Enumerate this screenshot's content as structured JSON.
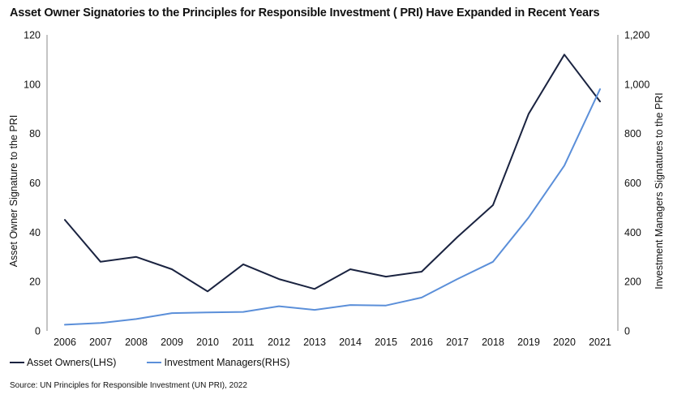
{
  "chart_data": {
    "type": "line",
    "title": "Asset Owner Signatories to the Principles for Responsible Investment ( PRI) Have Expanded in Recent Years",
    "x": [
      "2006",
      "2007",
      "2008",
      "2009",
      "2010",
      "2011",
      "2012",
      "2013",
      "2014",
      "2015",
      "2016",
      "2017",
      "2018",
      "2019",
      "2020",
      "2021"
    ],
    "series": [
      {
        "name": "Asset Owners(LHS)",
        "axis": "left",
        "color": "#1a2340",
        "values": [
          45,
          28,
          30,
          25,
          16,
          27,
          21,
          17,
          25,
          22,
          24,
          38,
          51,
          88,
          112,
          93
        ]
      },
      {
        "name": "Investment Managers(RHS)",
        "axis": "right",
        "color": "#5b8fd9",
        "values": [
          25,
          32,
          48,
          72,
          75,
          77,
          100,
          85,
          105,
          103,
          135,
          210,
          280,
          460,
          670,
          980
        ]
      }
    ],
    "ylabel_left": "Asset Owner Signature to the PRI",
    "ylabel_right": "Investment Managers Signatures to the PRI",
    "ylim_left": [
      0,
      120
    ],
    "yticks_left": [
      "0",
      "20",
      "40",
      "60",
      "80",
      "100",
      "120"
    ],
    "ylim_right": [
      0,
      1200
    ],
    "yticks_right": [
      "0",
      "200",
      "400",
      "600",
      "800",
      "1,000",
      "1,200"
    ],
    "grid": false,
    "legend_position": "bottom-left",
    "source": "Source: UN Principles for Responsible Investment (UN PRI), 2022"
  }
}
